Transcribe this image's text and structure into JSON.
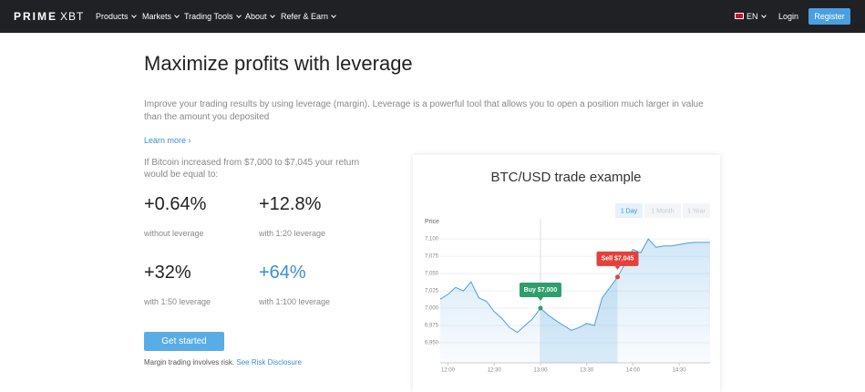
{
  "nav": {
    "logo_primary": "PRIME",
    "logo_secondary": "XBT",
    "items": [
      "Products",
      "Markets",
      "Trading Tools",
      "About",
      "Refer & Earn"
    ],
    "language": "EN",
    "login": "Login",
    "register": "Register"
  },
  "hero": {
    "title": "Maximize profits with leverage",
    "description": "Improve your trading results by using leverage (margin). Leverage is a powerful tool that allows you to open a position much larger in value than the amount you deposited",
    "learn_more": "Learn more ›",
    "intro": "If Bitcoin increased from $7,000 to $7,045 your return would be equal to:",
    "stats": [
      {
        "value": "+0.64%",
        "label": "without leverage"
      },
      {
        "value": "+12.8%",
        "label": "with 1:20 leverage"
      },
      {
        "value": "+32%",
        "label": "with 1:50 leverage"
      },
      {
        "value": "+64%",
        "label": "with 1:100 leverage"
      }
    ],
    "button": "Get started",
    "disclaimer": "Margin trading involves risk.",
    "disclaimer_link": "See Risk Disclosure"
  },
  "chart_data": {
    "type": "line",
    "title": "BTC/USD trade example",
    "ylabel": "Price",
    "ranges": [
      "1 Day",
      "1 Month",
      "1 Year"
    ],
    "x": [
      "11:55",
      "12:00",
      "12:05",
      "12:10",
      "12:15",
      "12:20",
      "12:25",
      "12:30",
      "12:35",
      "12:40",
      "12:45",
      "12:50",
      "12:55",
      "13:00",
      "13:05",
      "13:10",
      "13:15",
      "13:20",
      "13:25",
      "13:30",
      "13:35",
      "13:40",
      "13:45",
      "13:50",
      "13:55",
      "14:00",
      "14:05",
      "14:10",
      "14:15",
      "14:20",
      "14:25",
      "14:30",
      "14:35",
      "14:40",
      "14:45",
      "14:50"
    ],
    "values": [
      7013,
      7020,
      7030,
      7025,
      7038,
      7015,
      7010,
      6995,
      6985,
      6972,
      6965,
      6975,
      6985,
      7000,
      6990,
      6982,
      6975,
      6968,
      6972,
      6978,
      6975,
      7015,
      7030,
      7045,
      7065,
      7085,
      7080,
      7100,
      7088,
      7090,
      7090,
      7092,
      7094,
      7095,
      7095,
      7095
    ],
    "color": "#4a9fe0",
    "ylim": [
      6921,
      7116
    ],
    "yticks": [
      {
        "value": 6950,
        "label": "6,950"
      },
      {
        "value": 6975,
        "label": "6,975"
      },
      {
        "value": 7000,
        "label": "7,000"
      },
      {
        "value": 7025,
        "label": "7,025"
      },
      {
        "value": 7050,
        "label": "7,050"
      },
      {
        "value": 7075,
        "label": "7,075"
      },
      {
        "value": 7100,
        "label": "7,100"
      }
    ],
    "xticks": [
      "12:00",
      "12:30",
      "13:00",
      "13:30",
      "14:00",
      "14:30"
    ],
    "annotations": [
      {
        "text": "Buy $7,000",
        "x": "13:00",
        "value": 7000,
        "color": "#2e9e6a"
      },
      {
        "text": "Sell $7,045",
        "x": "13:50",
        "value": 7045,
        "color": "#e5403a"
      }
    ]
  }
}
